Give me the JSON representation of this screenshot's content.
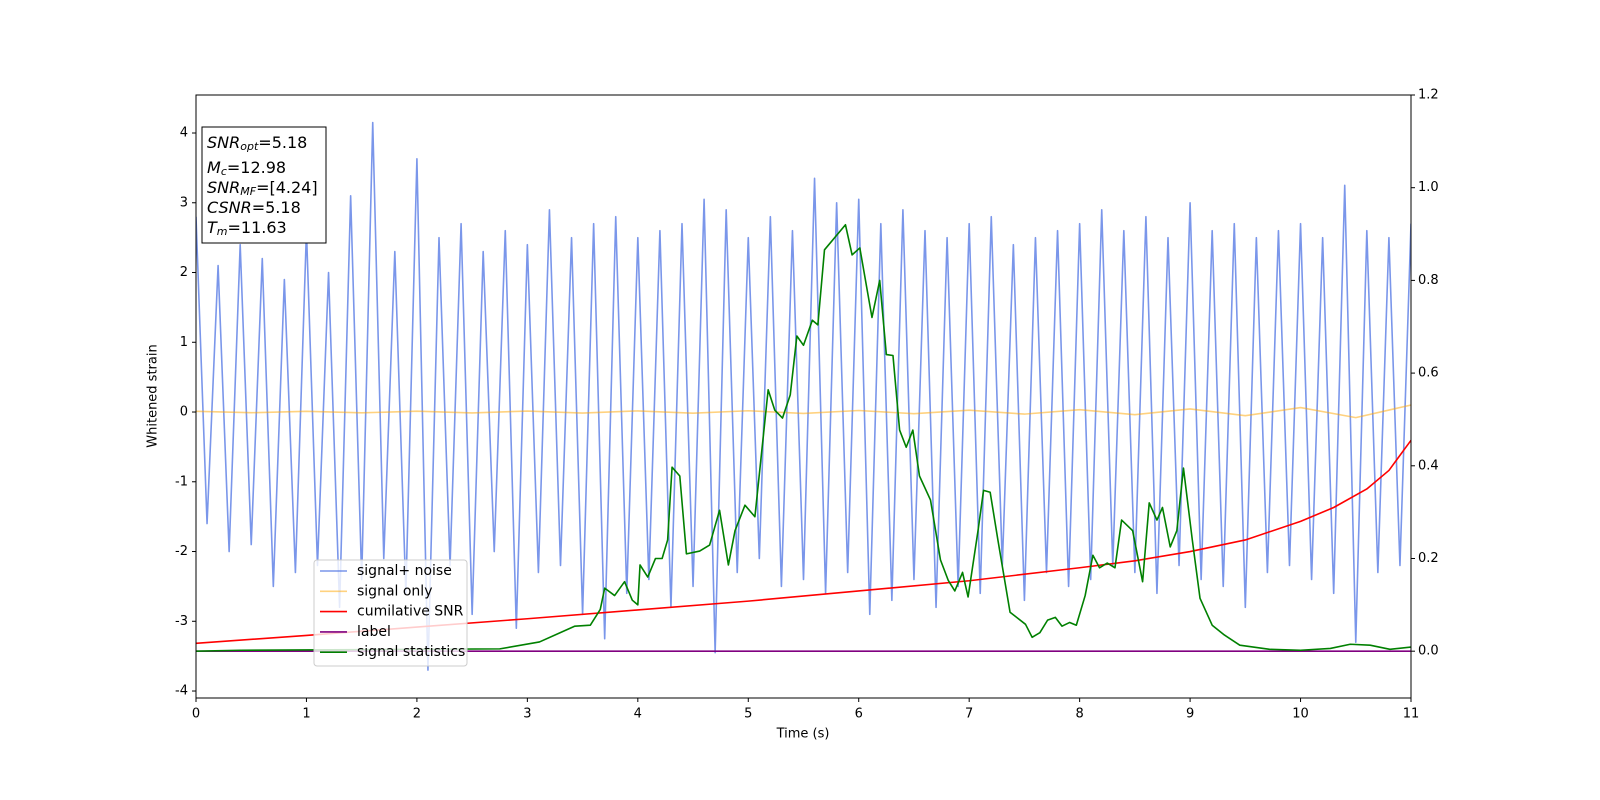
{
  "chart_data": {
    "type": "line",
    "xlabel": "Time (s)",
    "ylabel": "Whitened strain",
    "xlim": [
      0,
      11
    ],
    "xticks": [
      0,
      1,
      2,
      3,
      4,
      5,
      6,
      7,
      8,
      9,
      10,
      11
    ],
    "ylim": [
      -4.1,
      4.545
    ],
    "yticks": [
      -4,
      -3,
      -2,
      -1,
      0,
      1,
      2,
      3,
      4
    ],
    "y2lim": [
      -0.101,
      1.2
    ],
    "y2ticks": [
      {
        "value": 0,
        "label": "0.0"
      },
      {
        "value": 0.2,
        "label": "0.2"
      },
      {
        "value": 0.4,
        "label": "0.4"
      },
      {
        "value": 0.6,
        "label": "0.6"
      },
      {
        "value": 0.8,
        "label": "0.8"
      },
      {
        "value": 1,
        "label": "1.0"
      },
      {
        "value": 1.2,
        "label": "1.2"
      }
    ],
    "annotation": [
      {
        "base": "SNR",
        "sub": "opt",
        "rest": "=5.18"
      },
      {
        "base": "M",
        "sub": "c",
        "rest": "=12.98"
      },
      {
        "base": "SNR",
        "sub": "MF",
        "rest": "=[4.24]"
      },
      {
        "base": "CSNR",
        "sub": null,
        "rest": "=5.18"
      },
      {
        "base": "T",
        "sub": "m",
        "rest": "=11.63"
      }
    ],
    "series": [
      {
        "name": "signal+ noise",
        "color": "#4169e1",
        "alpha": 0.7,
        "x": [
          0,
          0.1,
          0.2,
          0.3,
          0.4,
          0.5,
          0.6,
          0.7,
          0.8,
          0.9,
          1,
          1.1,
          1.2,
          1.3,
          1.4,
          1.5,
          1.6,
          1.7,
          1.8,
          1.9,
          2,
          2.1,
          2.2,
          2.3,
          2.4,
          2.5,
          2.6,
          2.7,
          2.8,
          2.9,
          3,
          3.1,
          3.2,
          3.3,
          3.4,
          3.5,
          3.6,
          3.7,
          3.8,
          3.9,
          4,
          4.1,
          4.2,
          4.3,
          4.4,
          4.5,
          4.6,
          4.7,
          4.8,
          4.9,
          5,
          5.1,
          5.2,
          5.3,
          5.4,
          5.5,
          5.6,
          5.7,
          5.8,
          5.9,
          6,
          6.1,
          6.2,
          6.3,
          6.4,
          6.5,
          6.6,
          6.7,
          6.8,
          6.9,
          7,
          7.1,
          7.2,
          7.3,
          7.4,
          7.5,
          7.6,
          7.7,
          7.8,
          7.9,
          8,
          8.1,
          8.2,
          8.3,
          8.4,
          8.5,
          8.6,
          8.7,
          8.8,
          8.9,
          9,
          9.1,
          9.2,
          9.3,
          9.4,
          9.5,
          9.6,
          9.7,
          9.8,
          9.9,
          10,
          10.1,
          10.2,
          10.3,
          10.4,
          10.5,
          10.6,
          10.7,
          10.8,
          10.9,
          11
        ],
        "values": [
          2.8,
          -1.6,
          2.1,
          -2.0,
          2.4,
          -1.9,
          2.2,
          -2.5,
          1.9,
          -2.3,
          2.6,
          -2.2,
          2.0,
          -2.8,
          3.1,
          -2.4,
          4.15,
          -2.1,
          2.3,
          -2.6,
          3.63,
          -3.7,
          2.5,
          -2.2,
          2.7,
          -2.9,
          2.3,
          -2.0,
          2.6,
          -3.1,
          2.4,
          -2.3,
          2.9,
          -2.2,
          2.5,
          -2.9,
          2.7,
          -3.25,
          2.8,
          -2.6,
          2.5,
          -2.4,
          2.6,
          -2.8,
          2.7,
          -2.5,
          3.05,
          -3.45,
          2.9,
          -2.3,
          2.5,
          -2.1,
          2.8,
          -2.5,
          2.6,
          -2.4,
          3.35,
          -2.6,
          3.0,
          -2.3,
          3.05,
          -2.9,
          2.7,
          -2.7,
          2.9,
          -2.4,
          2.6,
          -2.8,
          2.5,
          -2.5,
          2.7,
          -2.6,
          2.8,
          -2.2,
          2.4,
          -2.7,
          2.5,
          -2.3,
          2.6,
          -2.5,
          2.7,
          -2.4,
          2.9,
          -2.2,
          2.6,
          -2.3,
          2.8,
          -2.6,
          2.5,
          -2.2,
          3.0,
          -2.4,
          2.6,
          -2.5,
          2.7,
          -2.8,
          2.5,
          -2.3,
          2.6,
          -2.2,
          2.7,
          -2.4,
          2.5,
          -2.6,
          3.25,
          -3.3,
          2.6,
          -2.3,
          2.5,
          -2.2,
          2.7
        ]
      },
      {
        "name": "signal only",
        "color": "#ffa500",
        "alpha": 0.5,
        "x": [
          0,
          0.5,
          1,
          1.5,
          2,
          2.5,
          3,
          3.5,
          4,
          4.5,
          5,
          5.5,
          6,
          6.5,
          7,
          7.5,
          8,
          8.5,
          9,
          9.5,
          10,
          10.5,
          11
        ],
        "values": [
          0.01,
          -0.01,
          0.01,
          -0.012,
          0.012,
          -0.013,
          0.014,
          -0.015,
          0.016,
          -0.017,
          0.018,
          -0.02,
          0.022,
          -0.024,
          0.026,
          -0.03,
          0.034,
          -0.038,
          0.044,
          -0.052,
          0.064,
          -0.08,
          0.1
        ]
      },
      {
        "name": "cumilative SNR",
        "color": "#ff0000",
        "axis": "y2",
        "x": [
          0,
          1,
          2,
          3,
          4,
          5,
          6,
          7,
          8,
          8.5,
          9,
          9.5,
          10,
          10.3,
          10.6,
          10.8,
          11
        ],
        "values": [
          0.017,
          0.034,
          0.052,
          0.07,
          0.089,
          0.108,
          0.13,
          0.152,
          0.18,
          0.195,
          0.215,
          0.24,
          0.28,
          0.31,
          0.35,
          0.39,
          0.455
        ]
      },
      {
        "name": "label",
        "color": "#800080",
        "axis": "y2",
        "x": [
          0,
          11
        ],
        "values": [
          0,
          0
        ]
      },
      {
        "name": "signal statistics",
        "color": "#008000",
        "axis": "y2",
        "x": [
          0,
          0.4,
          2.75,
          3.11,
          3.43,
          3.57,
          3.66,
          3.7,
          3.79,
          3.88,
          3.95,
          4.0,
          4.02,
          4.09,
          4.16,
          4.22,
          4.27,
          4.31,
          4.38,
          4.44,
          4.56,
          4.65,
          4.74,
          4.82,
          4.88,
          4.97,
          5.06,
          5.18,
          5.24,
          5.31,
          5.38,
          5.44,
          5.5,
          5.58,
          5.63,
          5.69,
          5.88,
          5.94,
          6.01,
          6.12,
          6.19,
          6.25,
          6.31,
          6.37,
          6.43,
          6.49,
          6.55,
          6.65,
          6.74,
          6.81,
          6.87,
          6.94,
          6.99,
          7.08,
          7.13,
          7.19,
          7.26,
          7.37,
          7.51,
          7.57,
          7.64,
          7.71,
          7.78,
          7.84,
          7.91,
          7.97,
          8.05,
          8.12,
          8.18,
          8.25,
          8.32,
          8.38,
          8.48,
          8.57,
          8.63,
          8.7,
          8.75,
          8.82,
          8.88,
          8.94,
          9.02,
          9.09,
          9.2,
          9.31,
          9.45,
          9.72,
          10,
          10.27,
          10.45,
          10.63,
          10.81,
          11
        ],
        "values": [
          0,
          0.002,
          0.005,
          0.02,
          0.054,
          0.056,
          0.09,
          0.136,
          0.12,
          0.15,
          0.11,
          0.1,
          0.186,
          0.16,
          0.2,
          0.2,
          0.24,
          0.397,
          0.378,
          0.21,
          0.216,
          0.229,
          0.304,
          0.186,
          0.26,
          0.315,
          0.29,
          0.564,
          0.52,
          0.503,
          0.553,
          0.68,
          0.66,
          0.714,
          0.704,
          0.866,
          0.92,
          0.855,
          0.87,
          0.72,
          0.8,
          0.64,
          0.638,
          0.477,
          0.44,
          0.477,
          0.378,
          0.326,
          0.197,
          0.153,
          0.13,
          0.17,
          0.117,
          0.26,
          0.347,
          0.343,
          0.24,
          0.084,
          0.058,
          0.03,
          0.04,
          0.067,
          0.073,
          0.054,
          0.062,
          0.056,
          0.12,
          0.207,
          0.18,
          0.19,
          0.18,
          0.283,
          0.26,
          0.15,
          0.32,
          0.283,
          0.31,
          0.225,
          0.26,
          0.395,
          0.24,
          0.114,
          0.056,
          0.035,
          0.013,
          0.004,
          0.002,
          0.006,
          0.015,
          0.013,
          0.004,
          0.009
        ]
      }
    ]
  }
}
